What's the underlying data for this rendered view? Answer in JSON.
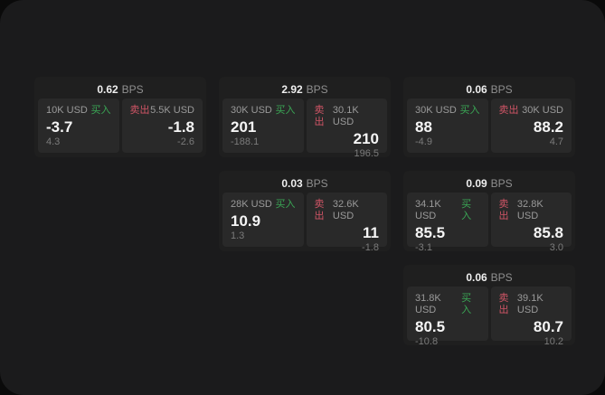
{
  "labels": {
    "bps_suffix": "BPS",
    "buy": "买入",
    "sell": "卖出"
  },
  "colors": {
    "backdrop": "#0a0a0a",
    "page_bg": "#1b1b1c",
    "card_bg": "#1f1f1f",
    "tile_bg": "#292929",
    "buy_green": "#3aa655",
    "sell_red": "#d05566",
    "value_white": "#f5f5f5",
    "label_gray": "#9a9a9a",
    "sub_gray": "#7b7b7b"
  },
  "cards": [
    {
      "bps": "0.62",
      "buy": {
        "size": "10K USD",
        "value": "-3.7",
        "sub": "4.3"
      },
      "sell": {
        "size": "5.5K USD",
        "value": "-1.8",
        "sub": "-2.6"
      }
    },
    {
      "bps": "2.92",
      "buy": {
        "size": "30K USD",
        "value": "201",
        "sub": "-188.1"
      },
      "sell": {
        "size": "30.1K USD",
        "value": "210",
        "sub": "196.5"
      }
    },
    {
      "bps": "0.06",
      "buy": {
        "size": "30K USD",
        "value": "88",
        "sub": "-4.9"
      },
      "sell": {
        "size": "30K USD",
        "value": "88.2",
        "sub": "4.7"
      }
    },
    {
      "bps": "0.03",
      "buy": {
        "size": "28K USD",
        "value": "10.9",
        "sub": "1.3"
      },
      "sell": {
        "size": "32.6K USD",
        "value": "11",
        "sub": "-1.8"
      }
    },
    {
      "bps": "0.09",
      "buy": {
        "size": "34.1K USD",
        "value": "85.5",
        "sub": "-3.1"
      },
      "sell": {
        "size": "32.8K USD",
        "value": "85.8",
        "sub": "3.0"
      }
    },
    {
      "bps": "0.06",
      "buy": {
        "size": "31.8K USD",
        "value": "80.5",
        "sub": "-10.8"
      },
      "sell": {
        "size": "39.1K USD",
        "value": "80.7",
        "sub": "10.2"
      }
    }
  ]
}
